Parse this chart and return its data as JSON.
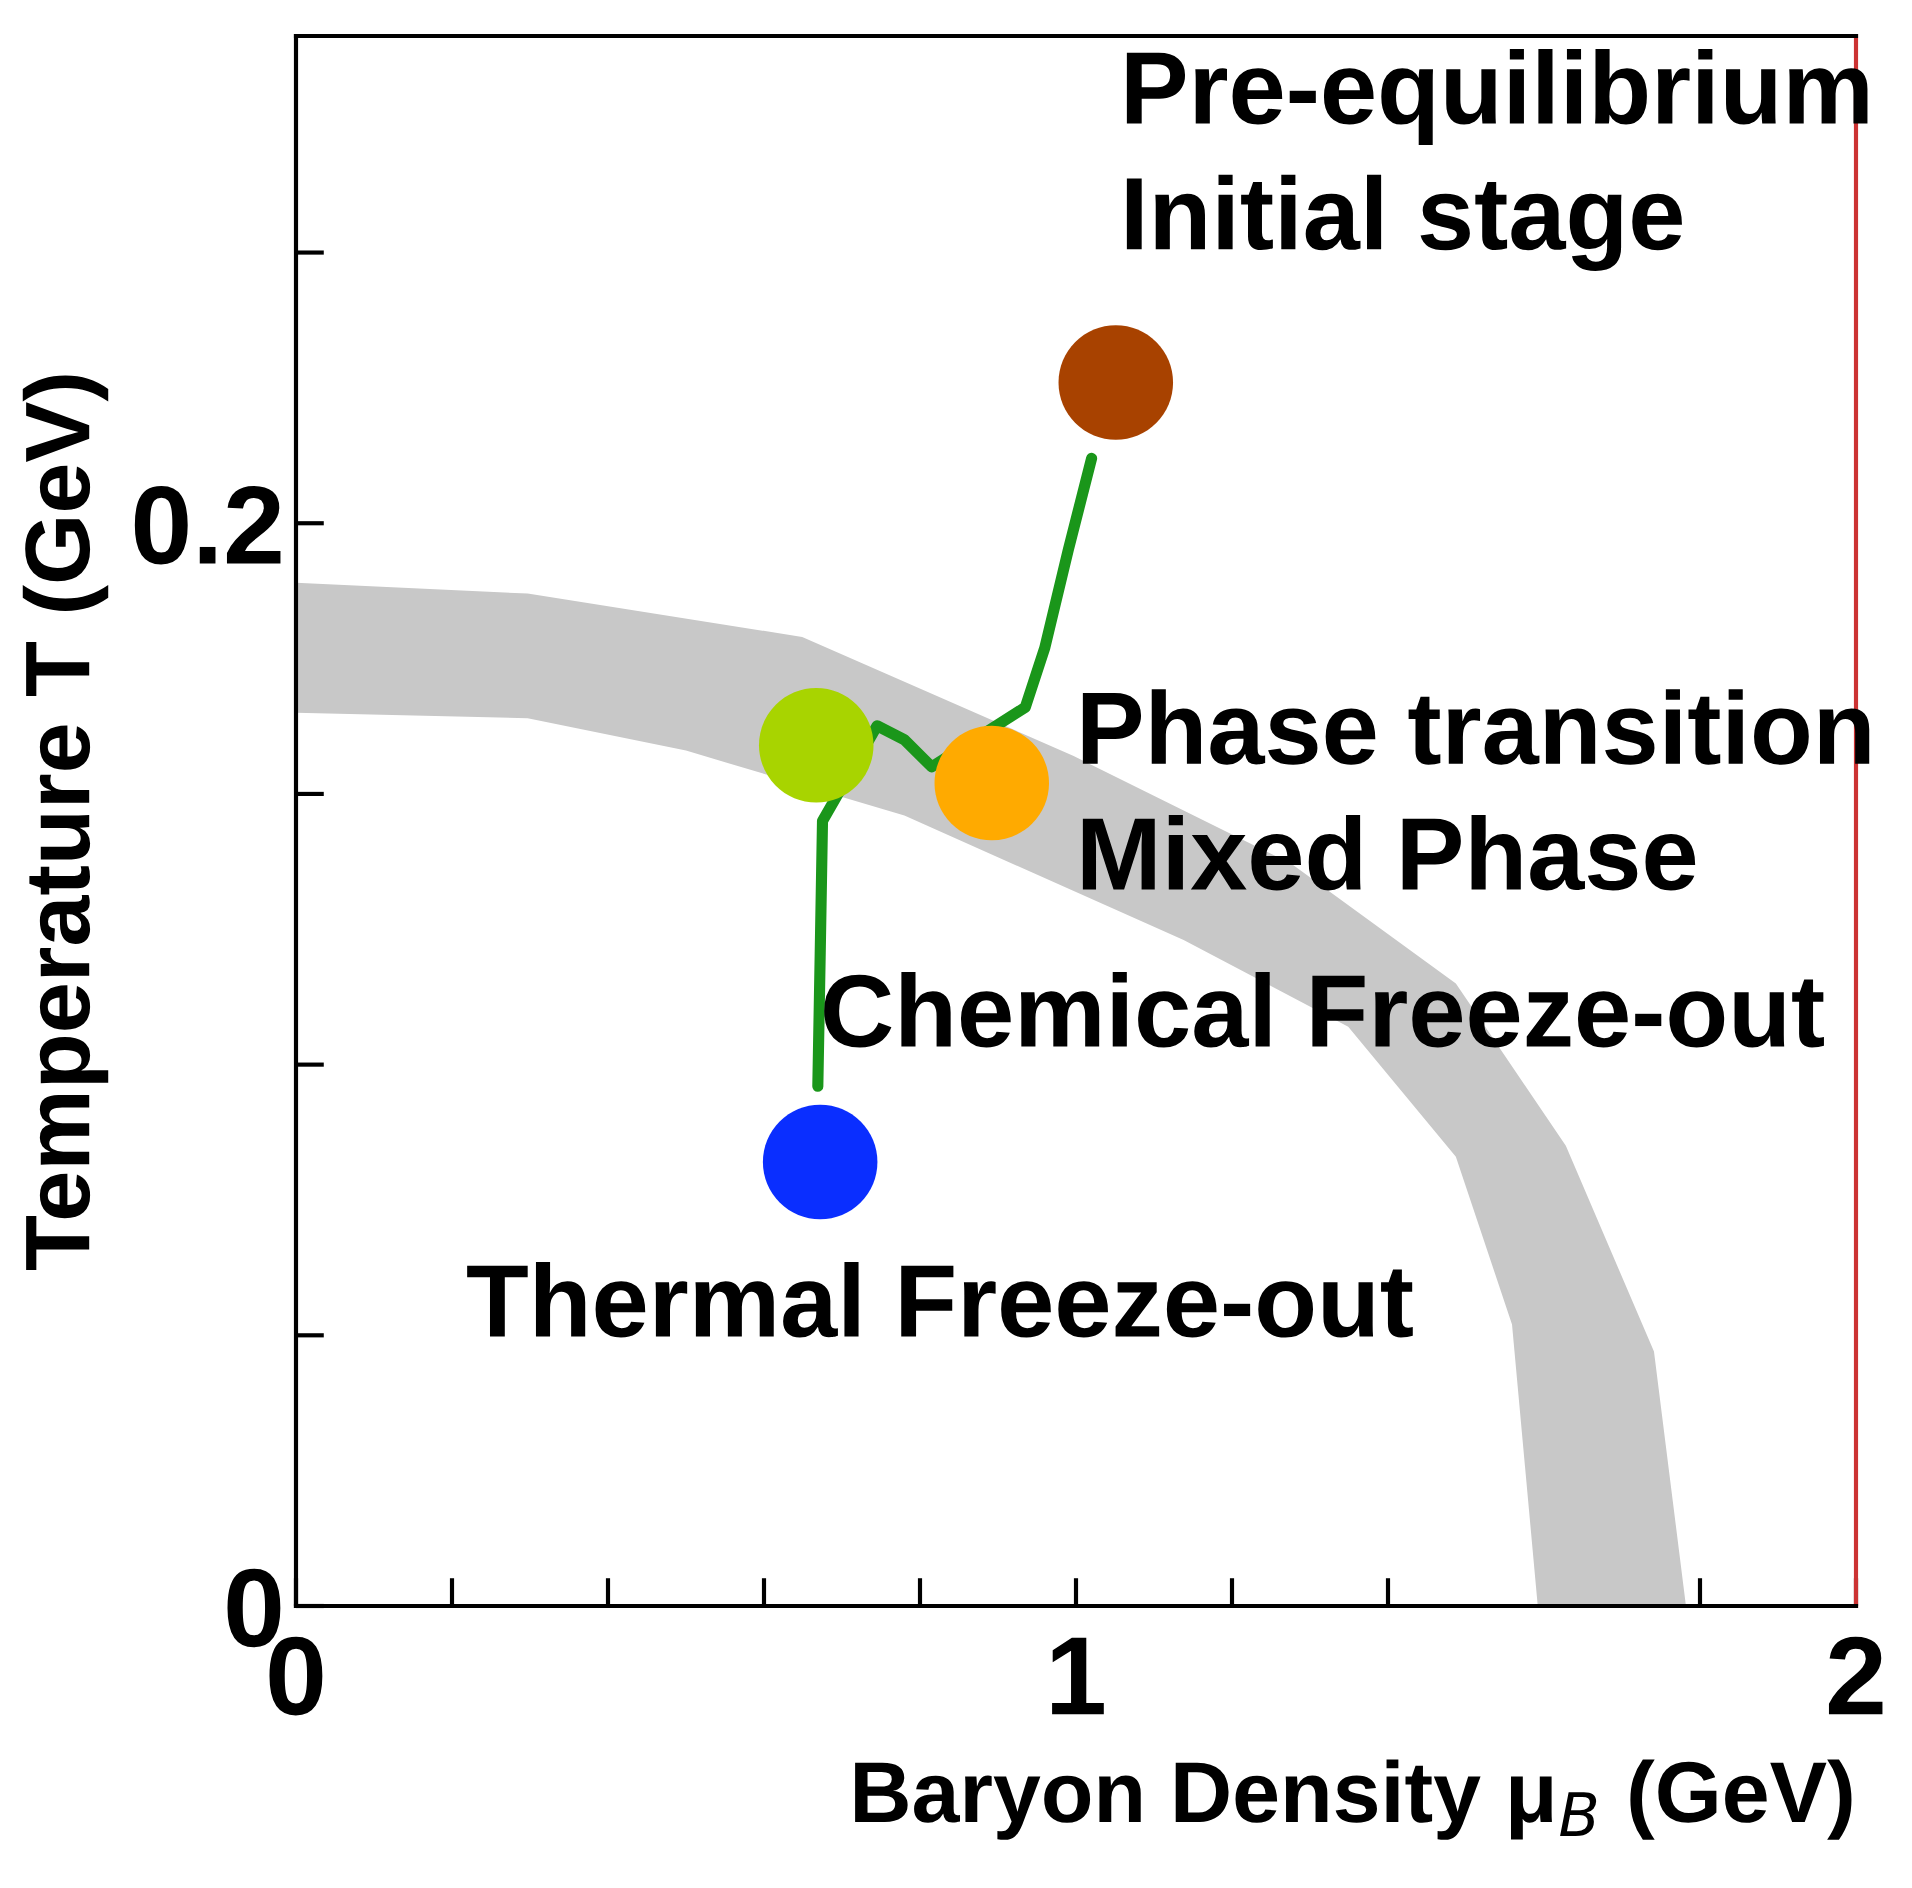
{
  "chart_data": {
    "type": "scatter",
    "xlabel": "Baryon Density μ$_{B}$ (GeV)",
    "ylabel": "Temperature T (GeV)",
    "xlim": [
      0,
      2
    ],
    "ylim": [
      0,
      0.29
    ],
    "xticks": [
      0,
      {
        "value": 0.2,
        "label": null
      },
      {
        "value": 0.4,
        "label": null
      },
      {
        "value": 0.6,
        "label": null
      },
      {
        "value": 0.8,
        "label": null
      },
      1,
      {
        "value": 1.2,
        "label": null
      },
      {
        "value": 1.4,
        "label": null
      },
      {
        "value": 1.6,
        "label": null
      },
      {
        "value": 1.8,
        "label": null
      },
      2
    ],
    "yticks": [
      0,
      {
        "value": 0.05,
        "label": null
      },
      {
        "value": 0.1,
        "label": null
      },
      {
        "value": 0.15,
        "label": null
      },
      0.2,
      {
        "value": 0.25,
        "label": null
      }
    ],
    "grid": false,
    "legend": false,
    "series": [
      {
        "type": "area",
        "color": "#c8c8c8",
        "x": [
          0,
          0.297,
          0.649,
          0.997,
          1.277,
          1.487,
          1.628,
          1.741,
          1.782,
          1.592,
          1.559,
          1.487,
          1.349,
          1.138,
          0.78,
          0.5,
          0.297,
          0
        ],
        "values": [
          0.189,
          0.187,
          0.179,
          0.157,
          0.137,
          0.115,
          0.085,
          0.047,
          0,
          0,
          0.052,
          0.083,
          0.107,
          0.123,
          0.146,
          0.158,
          0.164,
          0.165
        ]
      },
      {
        "type": "line",
        "color": "#1a961a",
        "x": [
          0.669,
          0.672,
          0.675,
          0.745,
          0.78,
          0.815,
          0.935,
          0.96,
          0.99,
          1.02
        ],
        "values": [
          0.096,
          0.12,
          0.145,
          0.1626,
          0.16,
          0.155,
          0.166,
          0.177,
          0.195,
          0.212
        ]
      },
      {
        "marker": "circle",
        "colors": [
          "#0a2eff",
          "#a8d400",
          "#ffaa00",
          "#a84200"
        ],
        "x": [
          0.672,
          0.667,
          0.892,
          1.051
        ],
        "values": [
          0.082,
          0.159,
          0.152,
          0.226
        ]
      }
    ],
    "annotations": [
      "Pre-equilibrium\nInitial stage",
      "Phase transition\nMixed Phase",
      "Chemical Freeze-out",
      "Thermal Freeze-out"
    ]
  }
}
